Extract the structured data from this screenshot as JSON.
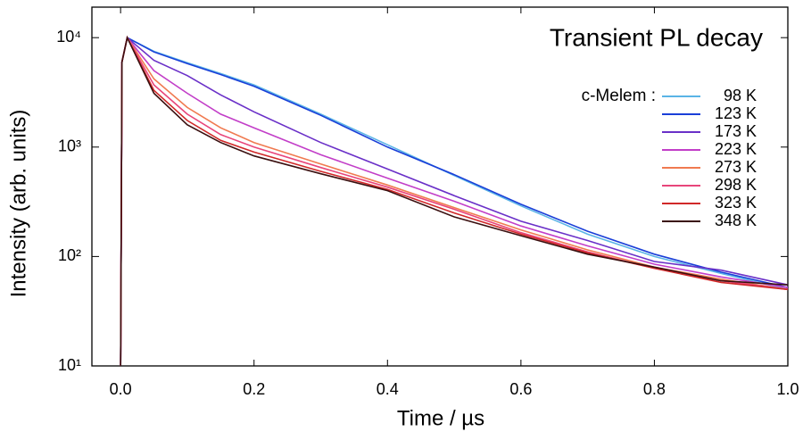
{
  "chart_data": {
    "type": "line",
    "title": "Transient PL decay",
    "xlabel": "Time / µs",
    "ylabel": "Intensity (arb. units)",
    "legend_title": "c-Melem :",
    "log_y": true,
    "legend": "upper right",
    "xlim": [
      -0.043,
      1.0
    ],
    "ylim": [
      10,
      19000
    ],
    "xticks": [
      {
        "value": 0,
        "label": "0.0"
      },
      0.2,
      0.4,
      0.6,
      0.8,
      {
        "value": 1,
        "label": "1.0"
      }
    ],
    "yticks": [
      {
        "value": 10,
        "label": "10¹"
      },
      {
        "value": 100,
        "label": "10²"
      },
      {
        "value": 1000,
        "label": "10³"
      },
      {
        "value": 10000,
        "label": "10⁴"
      }
    ],
    "x": [
      0,
      0.002,
      0.01,
      0.05,
      0.1,
      0.15,
      0.2,
      0.3,
      0.4,
      0.5,
      0.6,
      0.7,
      0.8,
      0.9,
      1.0
    ],
    "series": [
      {
        "name": "98 K",
        "color": "#5ab4e6",
        "values": [
          10,
          6000,
          10000,
          7500,
          5900,
          4700,
          3700,
          2000,
          1050,
          550,
          290,
          160,
          100,
          70,
          50
        ]
      },
      {
        "name": "123 K",
        "color": "#1a3fd8",
        "values": [
          10,
          6000,
          10000,
          7400,
          5800,
          4600,
          3600,
          1950,
          1000,
          560,
          300,
          170,
          105,
          72,
          52
        ]
      },
      {
        "name": "173 K",
        "color": "#6a30c8",
        "values": [
          10,
          6000,
          10000,
          6200,
          4500,
          3000,
          2100,
          1100,
          630,
          360,
          210,
          140,
          90,
          75,
          55
        ]
      },
      {
        "name": "223 K",
        "color": "#c23ec8",
        "values": [
          10,
          6000,
          10000,
          5000,
          3100,
          2000,
          1500,
          850,
          520,
          320,
          190,
          125,
          85,
          65,
          52
        ]
      },
      {
        "name": "273 K",
        "color": "#f07a50",
        "values": [
          10,
          6000,
          10000,
          4200,
          2300,
          1500,
          1100,
          700,
          450,
          280,
          175,
          115,
          80,
          62,
          50
        ]
      },
      {
        "name": "298 K",
        "color": "#e8457a",
        "values": [
          10,
          6000,
          10000,
          3700,
          2000,
          1300,
          1000,
          650,
          430,
          270,
          165,
          110,
          78,
          60,
          50
        ]
      },
      {
        "name": "323 K",
        "color": "#d02828",
        "values": [
          10,
          6000,
          10000,
          3300,
          1750,
          1150,
          900,
          600,
          410,
          250,
          160,
          108,
          78,
          58,
          50
        ]
      },
      {
        "name": "348 K",
        "color": "#3a1010",
        "values": [
          10,
          6000,
          10000,
          3100,
          1600,
          1100,
          830,
          570,
          400,
          230,
          155,
          105,
          80,
          60,
          55
        ]
      }
    ]
  }
}
